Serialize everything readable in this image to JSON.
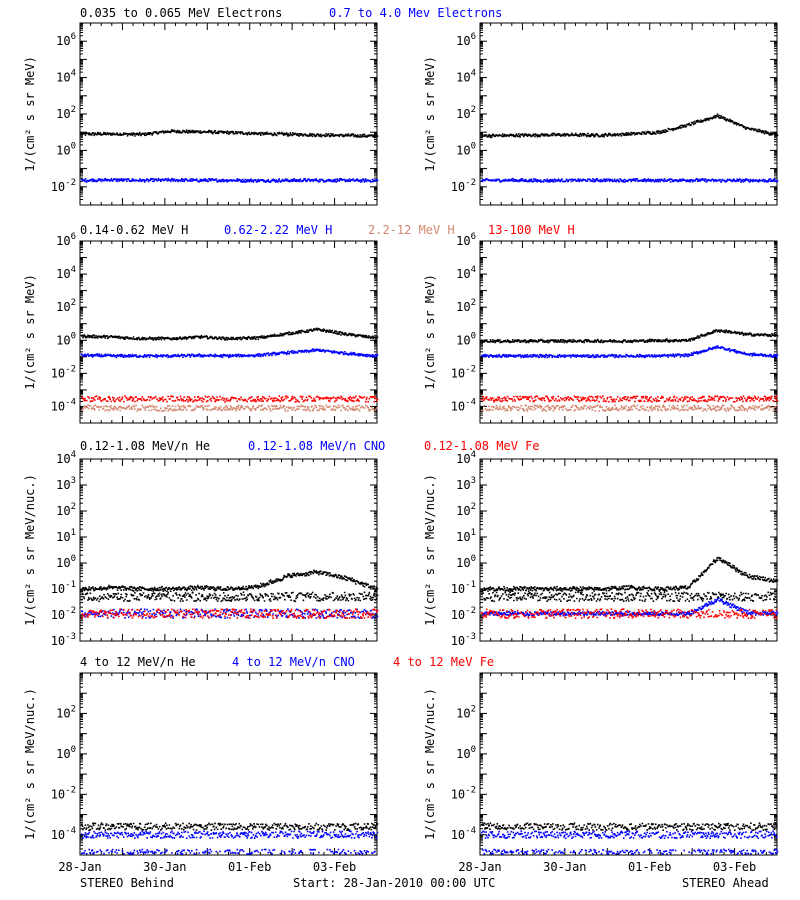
{
  "footer": {
    "left": "STEREO Behind",
    "center": "Start: 28-Jan-2010 00:00 UTC",
    "right": "STEREO Ahead"
  },
  "colors": {
    "black": "#000000",
    "blue": "#0000ff",
    "salmon": "#d2876e",
    "red": "#ff0000"
  },
  "chart_data": [
    {
      "type": "scatter",
      "row": 1,
      "labels": [
        {
          "text": "0.035 to 0.065 MeV Electrons",
          "color": "#000000"
        },
        {
          "text": "0.7 to 4.0 Mev Electrons",
          "color": "#0000ff"
        }
      ],
      "ylabel": "1/(cm² s sr MeV)",
      "ylog_range": [
        -3,
        7
      ],
      "yticks": [
        "10^-2",
        "10^0",
        "10^2",
        "10^4",
        "10^6"
      ],
      "panels": [
        {
          "spacecraft": "STEREO Behind",
          "series": [
            {
              "color": "#000000",
              "log_values": [
                0.9,
                0.9,
                0.88,
                1.05,
                1.02,
                0.98,
                0.92,
                0.88,
                0.85,
                0.82,
                0.78
              ]
            },
            {
              "color": "#0000ff",
              "log_values": [
                -1.65,
                -1.62,
                -1.65,
                -1.63,
                -1.65,
                -1.64,
                -1.66,
                -1.65,
                -1.64,
                -1.65,
                -1.66
              ]
            }
          ]
        },
        {
          "spacecraft": "STEREO Ahead",
          "series": [
            {
              "color": "#000000",
              "log_values": [
                0.8,
                0.82,
                0.85,
                0.85,
                0.83,
                0.9,
                1.0,
                1.4,
                1.9,
                1.2,
                0.85
              ]
            },
            {
              "color": "#0000ff",
              "log_values": [
                -1.65,
                -1.64,
                -1.66,
                -1.65,
                -1.64,
                -1.65,
                -1.65,
                -1.63,
                -1.66,
                -1.65,
                -1.66
              ]
            }
          ]
        }
      ]
    },
    {
      "type": "scatter",
      "row": 2,
      "labels": [
        {
          "text": "0.14-0.62 MeV H",
          "color": "#000000"
        },
        {
          "text": "0.62-2.22 MeV H",
          "color": "#0000ff"
        },
        {
          "text": "2.2-12 MeV H",
          "color": "#d2876e"
        },
        {
          "text": "13-100 MeV H",
          "color": "#ff0000"
        }
      ],
      "ylabel": "1/(cm² s sr MeV)",
      "ylog_range": [
        -5,
        6
      ],
      "yticks": [
        "10^-4",
        "10^-2",
        "10^0",
        "10^2",
        "10^4",
        "10^6"
      ],
      "panels": [
        {
          "spacecraft": "STEREO Behind",
          "series": [
            {
              "color": "#000000",
              "log_values": [
                0.25,
                0.2,
                0.1,
                0.1,
                0.2,
                0.1,
                0.15,
                0.4,
                0.65,
                0.35,
                0.15
              ]
            },
            {
              "color": "#0000ff",
              "log_values": [
                -0.9,
                -0.95,
                -0.95,
                -0.95,
                -0.92,
                -0.95,
                -0.9,
                -0.75,
                -0.6,
                -0.8,
                -0.95
              ]
            },
            {
              "color": "#d2876e",
              "log_values": [
                -4.1,
                -4.1,
                -4.1,
                -4.1,
                -4.1,
                -4.1,
                -4.1,
                -4.1,
                -4.1,
                -4.1,
                -4.1
              ]
            },
            {
              "color": "#ff0000",
              "log_values": [
                -3.55,
                -3.55,
                -3.55,
                -3.55,
                -3.55,
                -3.55,
                -3.55,
                -3.55,
                -3.55,
                -3.55,
                -3.55
              ]
            }
          ]
        },
        {
          "spacecraft": "STEREO Ahead",
          "series": [
            {
              "color": "#000000",
              "log_values": [
                -0.05,
                -0.05,
                -0.05,
                -0.05,
                -0.05,
                -0.05,
                -0.02,
                0.0,
                0.6,
                0.35,
                0.3
              ]
            },
            {
              "color": "#0000ff",
              "log_values": [
                -0.95,
                -0.95,
                -0.95,
                -0.95,
                -0.95,
                -0.95,
                -0.95,
                -0.9,
                -0.4,
                -0.85,
                -0.95
              ]
            },
            {
              "color": "#d2876e",
              "log_values": [
                -4.1,
                -4.1,
                -4.1,
                -4.1,
                -4.1,
                -4.1,
                -4.1,
                -4.1,
                -4.1,
                -4.1,
                -4.1
              ]
            },
            {
              "color": "#ff0000",
              "log_values": [
                -3.55,
                -3.55,
                -3.55,
                -3.55,
                -3.55,
                -3.55,
                -3.55,
                -3.55,
                -3.55,
                -3.55,
                -3.55
              ]
            }
          ]
        }
      ]
    },
    {
      "type": "scatter",
      "row": 3,
      "labels": [
        {
          "text": "0.12-1.08 MeV/n He",
          "color": "#000000"
        },
        {
          "text": "0.12-1.08 MeV/n CNO",
          "color": "#0000ff"
        },
        {
          "text": "0.12-1.08 MeV Fe",
          "color": "#ff0000"
        }
      ],
      "ylabel": "1/(cm² s sr MeV/nuc.)",
      "ylog_range": [
        -3,
        4
      ],
      "yticks": [
        "10^-3",
        "10^-2",
        "10^-1",
        "10^0",
        "10^1",
        "10^2",
        "10^3",
        "10^4"
      ],
      "panels": [
        {
          "spacecraft": "STEREO Behind",
          "series": [
            {
              "color": "#000000",
              "log_values": [
                -1.3,
                -1.3,
                -1.3,
                -1.3,
                -1.3,
                -1.3,
                -1.3,
                -1.3,
                -1.3,
                -1.3,
                -1.3
              ]
            },
            {
              "color": "#000000",
              "log_values": [
                -1.0,
                -0.95,
                -1.0,
                -1.0,
                -0.95,
                -1.0,
                -0.9,
                -0.5,
                -0.35,
                -0.6,
                -1.0
              ]
            },
            {
              "color": "#0000ff",
              "log_values": [
                -1.95,
                -1.95,
                -1.95,
                -1.95,
                -1.95,
                -1.95,
                -1.95,
                -1.95,
                -1.95,
                -1.95,
                -1.95
              ]
            },
            {
              "color": "#ff0000",
              "log_values": [
                -1.95,
                -1.95,
                -1.95,
                -1.95,
                -1.95,
                -1.95,
                -1.95,
                -1.95,
                -1.95,
                -1.95,
                -1.95
              ]
            }
          ]
        },
        {
          "spacecraft": "STEREO Ahead",
          "series": [
            {
              "color": "#000000",
              "log_values": [
                -1.3,
                -1.3,
                -1.3,
                -1.3,
                -1.3,
                -1.3,
                -1.3,
                -1.3,
                -1.3,
                -1.3,
                -1.3
              ]
            },
            {
              "color": "#000000",
              "log_values": [
                -1.0,
                -1.0,
                -1.0,
                -1.0,
                -1.0,
                -0.95,
                -1.0,
                -0.95,
                0.2,
                -0.5,
                -0.7
              ]
            },
            {
              "color": "#0000ff",
              "log_values": [
                -1.95,
                -1.95,
                -1.95,
                -1.95,
                -1.95,
                -1.95,
                -1.95,
                -1.95,
                -1.4,
                -1.9,
                -1.95
              ]
            },
            {
              "color": "#ff0000",
              "log_values": [
                -1.95,
                -1.95,
                -1.95,
                -1.95,
                -1.95,
                -1.95,
                -1.95,
                -1.95,
                -1.95,
                -1.95,
                -1.95
              ]
            }
          ]
        }
      ]
    },
    {
      "type": "scatter",
      "row": 4,
      "labels": [
        {
          "text": "4 to 12 MeV/n He",
          "color": "#000000"
        },
        {
          "text": "4 to 12 MeV/n CNO",
          "color": "#0000ff"
        },
        {
          "text": "4 to 12 MeV Fe",
          "color": "#ff0000"
        }
      ],
      "ylabel": "1/(cm² s sr MeV/nuc.)",
      "ylog_range": [
        -5,
        4
      ],
      "yticks": [
        "10^-4",
        "10^-2",
        "10^0",
        "10^2"
      ],
      "panels": [
        {
          "spacecraft": "STEREO Behind",
          "series": [
            {
              "color": "#000000",
              "log_values": [
                -3.6,
                -3.6,
                -3.6,
                -3.6,
                -3.6,
                -3.6,
                -3.6,
                -3.6,
                -3.6,
                -3.6,
                -3.6
              ]
            },
            {
              "color": "#0000ff",
              "log_values": [
                -4.0,
                -4.0,
                -4.0,
                -4.0,
                -4.0,
                -4.0,
                -4.0,
                -4.0,
                -4.0,
                -4.0,
                -4.0
              ]
            },
            {
              "color": "#0000ff",
              "log_values": [
                -4.9,
                -4.9,
                -4.9,
                -4.9,
                -4.9,
                -4.9,
                -4.9,
                -4.9,
                -4.9,
                -4.9,
                -4.9
              ]
            }
          ]
        },
        {
          "spacecraft": "STEREO Ahead",
          "series": [
            {
              "color": "#000000",
              "log_values": [
                -3.6,
                -3.6,
                -3.6,
                -3.6,
                -3.6,
                -3.6,
                -3.6,
                -3.6,
                -3.6,
                -3.6,
                -3.6
              ]
            },
            {
              "color": "#0000ff",
              "log_values": [
                -4.0,
                -4.0,
                -4.0,
                -4.0,
                -4.0,
                -4.0,
                -4.0,
                -4.0,
                -4.0,
                -4.0,
                -4.0
              ]
            },
            {
              "color": "#0000ff",
              "log_values": [
                -4.9,
                -4.9,
                -4.9,
                -4.9,
                -4.9,
                -4.9,
                -4.9,
                -4.9,
                -4.9,
                -4.9,
                -4.9
              ]
            }
          ]
        }
      ]
    }
  ],
  "x_axis": {
    "start": "2010-01-28",
    "end": "2010-02-04",
    "ticks": [
      "28-Jan",
      "30-Jan",
      "01-Feb",
      "03-Feb"
    ],
    "tick_dates": [
      "2010-01-28",
      "2010-01-30",
      "2010-02-01",
      "2010-02-03"
    ]
  }
}
